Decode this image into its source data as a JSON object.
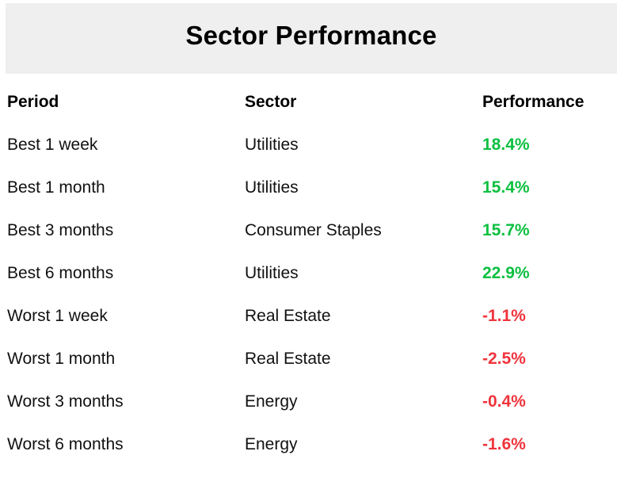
{
  "title": "Sector Performance",
  "columns": {
    "period": "Period",
    "sector": "Sector",
    "performance": "Performance"
  },
  "colors": {
    "positive": "#0bbf3f",
    "negative": "#f0343c",
    "header_bg": "#efefef"
  },
  "rows": [
    {
      "period": "Best 1 week",
      "sector": "Utilities",
      "performance": "18.4%",
      "trend": "positive"
    },
    {
      "period": "Best 1 month",
      "sector": "Utilities",
      "performance": "15.4%",
      "trend": "positive"
    },
    {
      "period": "Best 3 months",
      "sector": "Consumer Staples",
      "performance": "15.7%",
      "trend": "positive"
    },
    {
      "period": "Best 6 months",
      "sector": "Utilities",
      "performance": "22.9%",
      "trend": "positive"
    },
    {
      "period": "Worst 1 week",
      "sector": "Real Estate",
      "performance": "-1.1%",
      "trend": "negative"
    },
    {
      "period": "Worst 1 month",
      "sector": "Real Estate",
      "performance": "-2.5%",
      "trend": "negative"
    },
    {
      "period": "Worst 3 months",
      "sector": "Energy",
      "performance": "-0.4%",
      "trend": "negative"
    },
    {
      "period": "Worst 6 months",
      "sector": "Energy",
      "performance": "-1.6%",
      "trend": "negative"
    }
  ]
}
